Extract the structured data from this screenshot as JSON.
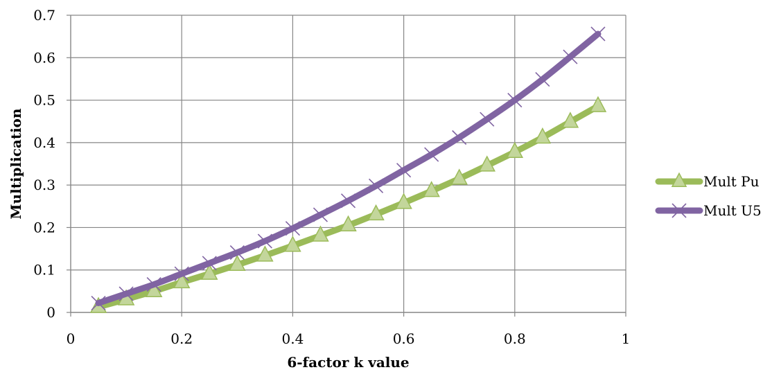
{
  "chart_data": {
    "type": "line",
    "title": "",
    "xlabel": "6-factor k value",
    "ylabel": "Multiplication",
    "xlim": [
      0,
      1
    ],
    "ylim": [
      0,
      0.7
    ],
    "x_ticks": [
      "0",
      "0.2",
      "0.4",
      "0.6",
      "0.8",
      "1"
    ],
    "y_ticks": [
      "0",
      "0.1",
      "0.2",
      "0.3",
      "0.4",
      "0.5",
      "0.6",
      "0.7"
    ],
    "grid": true,
    "legend_position": "right",
    "x": [
      0.05,
      0.1,
      0.15,
      0.2,
      0.25,
      0.3,
      0.35,
      0.4,
      0.45,
      0.5,
      0.55,
      0.6,
      0.65,
      0.7,
      0.75,
      0.8,
      0.85,
      0.9,
      0.95
    ],
    "series": [
      {
        "name": "Mult Pu",
        "color": "#9bbb59",
        "marker": "triangle",
        "values": [
          0.013,
          0.031,
          0.05,
          0.071,
          0.091,
          0.112,
          0.134,
          0.157,
          0.181,
          0.205,
          0.231,
          0.258,
          0.286,
          0.315,
          0.346,
          0.378,
          0.412,
          0.449,
          0.486
        ]
      },
      {
        "name": "Mult U5",
        "color": "#8064a2",
        "marker": "x",
        "values": [
          0.022,
          0.044,
          0.066,
          0.091,
          0.116,
          0.141,
          0.168,
          0.198,
          0.23,
          0.263,
          0.298,
          0.335,
          0.372,
          0.412,
          0.455,
          0.5,
          0.549,
          0.602,
          0.656
        ]
      }
    ]
  }
}
